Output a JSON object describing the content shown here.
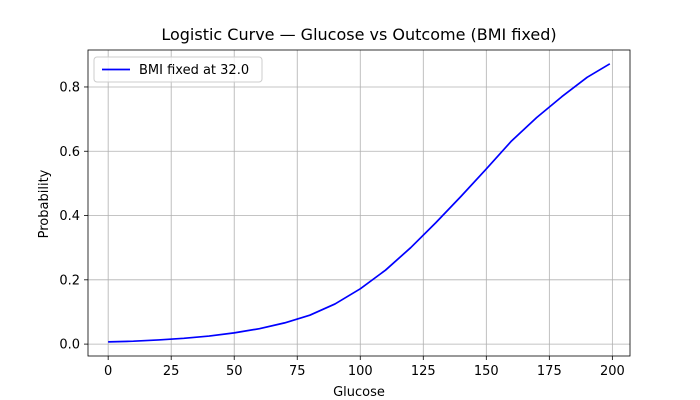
{
  "chart_data": {
    "type": "line",
    "title": "Logistic Curve — Glucose vs Outcome (BMI fixed)",
    "xlabel": "Glucose",
    "ylabel": "Probability",
    "xlim": [
      -8,
      207
    ],
    "ylim": [
      -0.037,
      0.915
    ],
    "xticks": [
      0,
      25,
      50,
      75,
      100,
      125,
      150,
      175,
      200
    ],
    "yticks": [
      0.0,
      0.2,
      0.4,
      0.6,
      0.8
    ],
    "xtick_labels": [
      "0",
      "25",
      "50",
      "75",
      "100",
      "125",
      "150",
      "175",
      "200"
    ],
    "ytick_labels": [
      "0.0",
      "0.2",
      "0.4",
      "0.6",
      "0.8"
    ],
    "grid": true,
    "legend_position": "upper-left",
    "series": [
      {
        "name": "BMI fixed at 32.0",
        "color": "#0000ff",
        "x": [
          0,
          10,
          20,
          30,
          40,
          50,
          60,
          70,
          80,
          90,
          100,
          110,
          120,
          130,
          140,
          150,
          160,
          170,
          180,
          190,
          199
        ],
        "y": [
          0.007,
          0.009,
          0.013,
          0.018,
          0.025,
          0.035,
          0.048,
          0.066,
          0.09,
          0.125,
          0.172,
          0.23,
          0.3,
          0.378,
          0.46,
          0.545,
          0.632,
          0.705,
          0.77,
          0.83,
          0.872
        ]
      }
    ]
  }
}
